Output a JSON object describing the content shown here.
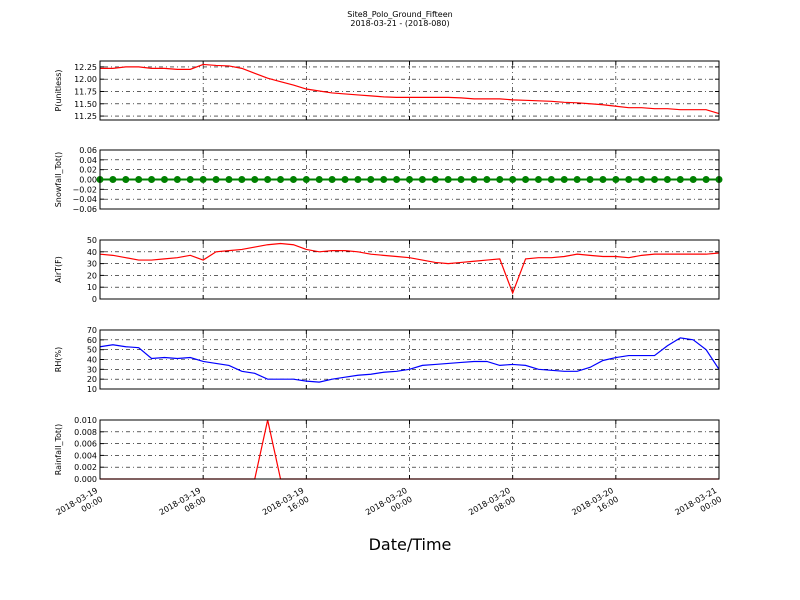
{
  "title": "Site8_Polo_Ground_Fifteen",
  "subtitle": "2018-03-21 - (2018-080)",
  "xlabel": "Date/Time",
  "x_axis": {
    "xlim": [
      "2018-03-19 00:00",
      "2018-03-21 00:00"
    ],
    "xticks": [
      {
        "value": "2018-03-19 00:00",
        "label": [
          "2018-03-19",
          "00:00"
        ]
      },
      {
        "value": "2018-03-19 08:00",
        "label": [
          "2018-03-19",
          "08:00"
        ]
      },
      {
        "value": "2018-03-19 16:00",
        "label": [
          "2018-03-19",
          "16:00"
        ]
      },
      {
        "value": "2018-03-20 00:00",
        "label": [
          "2018-03-20",
          "00:00"
        ]
      },
      {
        "value": "2018-03-20 08:00",
        "label": [
          "2018-03-20",
          "08:00"
        ]
      },
      {
        "value": "2018-03-20 16:00",
        "label": [
          "2018-03-20",
          "16:00"
        ]
      },
      {
        "value": "2018-03-21 00:00",
        "label": [
          "2018-03-21",
          "00:00"
        ]
      }
    ],
    "x": [
      "2018-03-19 00:00",
      "2018-03-19 01:00",
      "2018-03-19 02:00",
      "2018-03-19 03:00",
      "2018-03-19 04:00",
      "2018-03-19 05:00",
      "2018-03-19 06:00",
      "2018-03-19 07:00",
      "2018-03-19 08:00",
      "2018-03-19 09:00",
      "2018-03-19 10:00",
      "2018-03-19 11:00",
      "2018-03-19 12:00",
      "2018-03-19 13:00",
      "2018-03-19 14:00",
      "2018-03-19 15:00",
      "2018-03-19 16:00",
      "2018-03-19 17:00",
      "2018-03-19 18:00",
      "2018-03-19 19:00",
      "2018-03-19 20:00",
      "2018-03-19 21:00",
      "2018-03-19 22:00",
      "2018-03-19 23:00",
      "2018-03-20 00:00",
      "2018-03-20 01:00",
      "2018-03-20 02:00",
      "2018-03-20 03:00",
      "2018-03-20 04:00",
      "2018-03-20 05:00",
      "2018-03-20 06:00",
      "2018-03-20 07:00",
      "2018-03-20 08:00",
      "2018-03-20 09:00",
      "2018-03-20 10:00",
      "2018-03-20 11:00",
      "2018-03-20 12:00",
      "2018-03-20 13:00",
      "2018-03-20 14:00",
      "2018-03-20 15:00",
      "2018-03-20 16:00",
      "2018-03-20 17:00",
      "2018-03-20 18:00",
      "2018-03-20 19:00",
      "2018-03-20 20:00",
      "2018-03-20 21:00",
      "2018-03-20 22:00",
      "2018-03-20 23:00",
      "2018-03-21 00:00"
    ]
  },
  "chart_data": [
    {
      "type": "line",
      "ylabel": "P(unitless)",
      "ylim": [
        11.17,
        12.37
      ],
      "grid": true,
      "yticks": [
        11.25,
        {
          "value": 11.5,
          "label": "11.50"
        },
        11.75,
        {
          "value": 12,
          "label": "12.00"
        },
        12.25
      ],
      "series": [
        {
          "name": "P",
          "color": "#ff0000",
          "values": [
            12.22,
            12.22,
            12.25,
            12.25,
            12.22,
            12.22,
            12.2,
            12.2,
            12.3,
            12.28,
            12.27,
            12.22,
            12.12,
            12.02,
            11.95,
            11.88,
            11.8,
            11.76,
            11.72,
            11.7,
            11.68,
            11.66,
            11.64,
            11.63,
            11.63,
            11.63,
            11.63,
            11.63,
            11.62,
            11.6,
            11.6,
            11.6,
            11.58,
            11.57,
            11.56,
            11.55,
            11.53,
            11.52,
            11.5,
            11.48,
            11.45,
            11.42,
            11.42,
            11.4,
            11.4,
            11.38,
            11.38,
            11.38,
            11.3
          ]
        }
      ]
    },
    {
      "type": "scatter",
      "ylabel": "Snowfall_Tot()",
      "ylim": [
        -0.06,
        0.06
      ],
      "grid": true,
      "yticks": [
        {
          "value": -0.06,
          "label": "−0.06"
        },
        {
          "value": -0.04,
          "label": "−0.04"
        },
        {
          "value": -0.02,
          "label": "−0.02"
        },
        {
          "value": 0,
          "label": "0.00"
        },
        0.02,
        0.04,
        0.06
      ],
      "series": [
        {
          "name": "Snowfall_Tot",
          "color": "#008000",
          "values": [
            0,
            0,
            0,
            0,
            0,
            0,
            0,
            0,
            0,
            0,
            0,
            0,
            0,
            0,
            0,
            0,
            0,
            0,
            0,
            0,
            0,
            0,
            0,
            0,
            0,
            0,
            0,
            0,
            0,
            0,
            0,
            0,
            0,
            0,
            0,
            0,
            0,
            0,
            0,
            0,
            0,
            0,
            0,
            0,
            0,
            0,
            0,
            0,
            0
          ]
        }
      ]
    },
    {
      "type": "line",
      "ylabel": "AirT(F)",
      "ylim": [
        0,
        50
      ],
      "grid": true,
      "yticks": [
        0,
        10,
        20,
        30,
        40,
        50
      ],
      "series": [
        {
          "name": "AirT",
          "color": "#ff0000",
          "values": [
            38,
            37,
            35,
            33,
            33,
            34,
            35,
            37,
            33,
            40,
            41,
            42,
            44,
            46,
            47,
            46,
            42,
            40,
            41,
            41,
            40,
            38,
            37,
            36,
            35,
            33,
            31,
            30,
            31,
            32,
            33,
            34,
            5,
            34,
            35,
            35,
            36,
            38,
            37,
            36,
            36,
            35,
            37,
            38,
            38,
            38,
            38,
            38,
            39
          ]
        }
      ]
    },
    {
      "type": "line",
      "ylabel": "RH(%)",
      "ylim": [
        10,
        70
      ],
      "grid": true,
      "yticks": [
        10,
        20,
        30,
        40,
        50,
        60,
        70
      ],
      "series": [
        {
          "name": "RH",
          "color": "#0000ff",
          "values": [
            53,
            55,
            53,
            52,
            41,
            42,
            41,
            42,
            38,
            36,
            34,
            28,
            26,
            20,
            20,
            20,
            18,
            17,
            20,
            22,
            24,
            25,
            27,
            28,
            30,
            34,
            35,
            36,
            37,
            38,
            38,
            34,
            35,
            34,
            30,
            29,
            28,
            28,
            32,
            39,
            42,
            44,
            44,
            44,
            54,
            62,
            60,
            50,
            30
          ]
        }
      ]
    },
    {
      "type": "line",
      "ylabel": "Rainfall_Tot()",
      "ylim": [
        0,
        0.01
      ],
      "grid": true,
      "yticks": [
        {
          "value": 0,
          "label": "0.000"
        },
        {
          "value": 0.002,
          "label": "0.002"
        },
        {
          "value": 0.004,
          "label": "0.004"
        },
        {
          "value": 0.006,
          "label": "0.006"
        },
        {
          "value": 0.008,
          "label": "0.008"
        },
        {
          "value": 0.01,
          "label": "0.010"
        }
      ],
      "series": [
        {
          "name": "Rainfall_Tot",
          "color": "#ff0000",
          "values": [
            0,
            0,
            0,
            0,
            0,
            0,
            0,
            0,
            0,
            0,
            0,
            0,
            0,
            0.01,
            0,
            0,
            0,
            0,
            0,
            0,
            0,
            0,
            0,
            0,
            0,
            0,
            0,
            0,
            0,
            0,
            0,
            0,
            0,
            0,
            0,
            0,
            0,
            0,
            0,
            0,
            0,
            0,
            0,
            0,
            0,
            0,
            0,
            0,
            0
          ]
        }
      ]
    }
  ]
}
